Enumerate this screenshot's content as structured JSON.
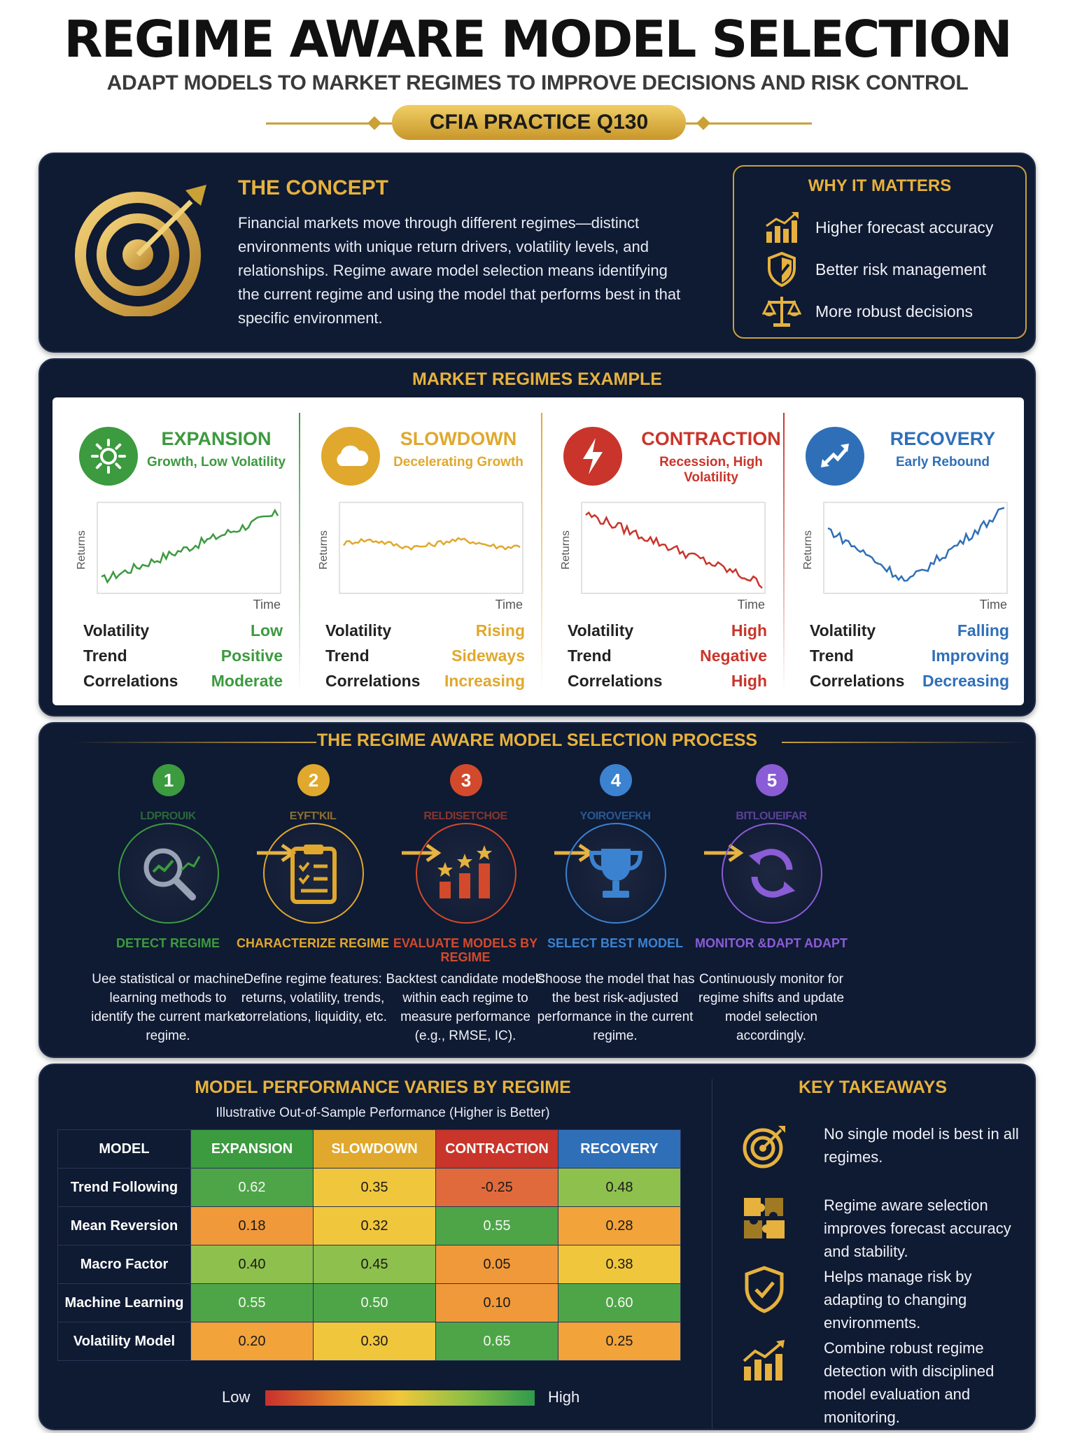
{
  "header": {
    "title": "REGIME AWARE MODEL SELECTION",
    "subtitle": "ADAPT MODELS TO MARKET REGIMES TO IMPROVE DECISIONS AND RISK CONTROL",
    "badge": "CFIA PRACTICE Q130"
  },
  "concept": {
    "title": "THE CONCEPT",
    "text": "Financial markets move through different regimes—distinct environments with unique return drivers, volatility levels, and relationships. Regime aware model selection means identifying the current regime and using the model that performs best in that specific environment."
  },
  "why": {
    "title": "WHY IT MATTERS",
    "items": [
      "Higher forecast accuracy",
      "Better risk management",
      "More robust decisions"
    ]
  },
  "regimes": {
    "title": "MARKET REGIMES EXAMPLE",
    "y_label": "Returns",
    "x_label": "Time",
    "row_labels": [
      "Volatility",
      "Trend",
      "Correlations"
    ],
    "cards": [
      {
        "name": "EXPANSION",
        "sub": "Growth, Low Volatility",
        "color": "#3c9a3f",
        "values": [
          "Low",
          "Positive",
          "Moderate"
        ]
      },
      {
        "name": "SLOWDOWN",
        "sub": "Decelerating Growth",
        "color": "#e0a82c",
        "values": [
          "Rising",
          "Sideways",
          "Increasing"
        ]
      },
      {
        "name": "CONTRACTION",
        "sub": "Recession, High Volatility",
        "color": "#c9352b",
        "values": [
          "High",
          "Negative",
          "High"
        ]
      },
      {
        "name": "RECOVERY",
        "sub": "Early Rebound",
        "color": "#2f6fb8",
        "values": [
          "Falling",
          "Improving",
          "Decreasing"
        ]
      }
    ]
  },
  "process": {
    "title": "THE REGIME AWARE MODEL SELECTION PROCESS",
    "steps": [
      {
        "num": "1",
        "ghost": "LDPROUIK",
        "title": "DETECT REGIME",
        "desc": "Uee statistical or machine learning methods to identify the current market regime.",
        "color": "#3c9a3f"
      },
      {
        "num": "2",
        "ghost": "EYFT'KIL",
        "title": "CHARACTERIZE REGIME",
        "desc": "Define regime features: returns, volatility, trends, correlations, liquidity, etc.",
        "color": "#e0a82c"
      },
      {
        "num": "3",
        "ghost": "RELDISETCHOE",
        "title": "EVALUATE MODELS BY REGIME",
        "desc": "Backtest candidate models within each regime to measure performance (e.g., RMSE, IC).",
        "color": "#d24a2b"
      },
      {
        "num": "4",
        "ghost": "YOIROVEFKH",
        "title": "SELECT BEST MODEL",
        "desc": "Choose the model that has the best risk-adjusted performance in the current regime.",
        "color": "#3b82d0"
      },
      {
        "num": "5",
        "ghost": "BITLOUEIFAR",
        "title": "MONITOR &DAPT ADAPT",
        "desc": "Continuously monitor for regime shifts and update model selection accordingly.",
        "color": "#8a5cd6"
      }
    ]
  },
  "performance": {
    "title": "MODEL PERFORMANCE VARIES BY REGIME",
    "subtitle": "Illustrative Out-of-Sample Performance (Higher is Better)",
    "model_header": "MODEL",
    "columns": [
      {
        "label": "EXPANSION",
        "color": "#3c9a3f"
      },
      {
        "label": "SLOWDOWN",
        "color": "#e0a82c"
      },
      {
        "label": "CONTRACTION",
        "color": "#c9352b"
      },
      {
        "label": "RECOVERY",
        "color": "#2f6fb8"
      }
    ],
    "rows": [
      {
        "model": "Trend Following",
        "values": [
          "0.62",
          "0.35",
          "-0.25",
          "0.48"
        ]
      },
      {
        "model": "Mean Reversion",
        "values": [
          "0.18",
          "0.32",
          "0.55",
          "0.28"
        ]
      },
      {
        "model": "Macro Factor",
        "values": [
          "0.40",
          "0.45",
          "0.05",
          "0.38"
        ]
      },
      {
        "model": "Machine Learning",
        "values": [
          "0.55",
          "0.50",
          "0.10",
          "0.60"
        ]
      },
      {
        "model": "Volatility Model",
        "values": [
          "0.20",
          "0.30",
          "0.65",
          "0.25"
        ]
      }
    ],
    "legend_low": "Low",
    "legend_high": "High"
  },
  "takeaways": {
    "title": "KEY TAKEAWAYS",
    "items": [
      "No single model is best in all regimes.",
      "Regime aware selection improves forecast accuracy and stability.",
      "Helps manage risk by adapting to changing environments.",
      "Combine robust regime detection with disciplined model evaluation and monitoring."
    ]
  }
}
